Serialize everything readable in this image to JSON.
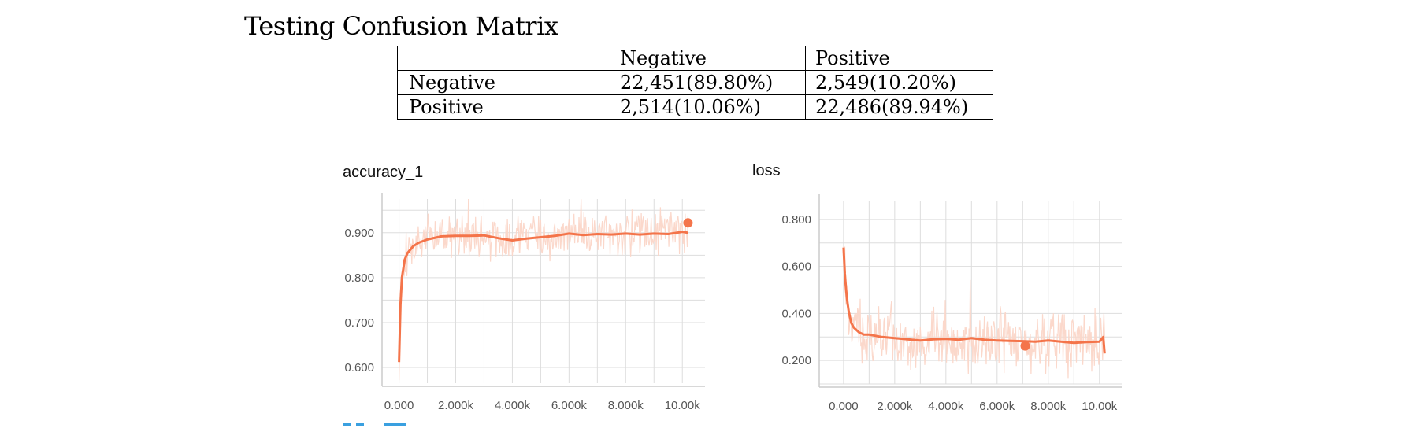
{
  "page_title": "Testing Confusion Matrix",
  "confusion_matrix": {
    "header": [
      "",
      "Negative",
      "Positive"
    ],
    "rows": [
      {
        "label": "Negative",
        "cells": [
          "22,451(89.80%)",
          "2,549(10.20%)"
        ]
      },
      {
        "label": "Positive",
        "cells": [
          "2,514(10.06%)",
          "22,486(89.94%)"
        ]
      }
    ]
  },
  "chart_data": [
    {
      "type": "line",
      "title": "accuracy_1",
      "xlabel": "",
      "ylabel": "",
      "xlim": [
        -600,
        10800
      ],
      "ylim": [
        0.565,
        0.975
      ],
      "x_ticks": [
        0,
        2000,
        4000,
        6000,
        8000,
        10000
      ],
      "x_tick_labels": [
        "0.000",
        "2.000k",
        "4.000k",
        "6.000k",
        "8.000k",
        "10.00k"
      ],
      "y_ticks": [
        0.6,
        0.7,
        0.8,
        0.9
      ],
      "y_tick_labels": [
        "0.600",
        "0.700",
        "0.800",
        "0.900"
      ],
      "grid": true,
      "colors": {
        "smoothed": "#f4744a",
        "raw": "#fbd6c8",
        "grid": "#dddddd",
        "axis": "#cccccc",
        "tick_text": "#555555"
      },
      "series": [
        {
          "smoothed": true,
          "x": [
            0,
            50,
            100,
            200,
            300,
            500,
            700,
            1000,
            1500,
            2000,
            2500,
            3000,
            3500,
            4000,
            4500,
            5000,
            5500,
            6000,
            6500,
            7000,
            7500,
            8000,
            8500,
            9000,
            9500,
            10000,
            10200
          ],
          "y": [
            0.612,
            0.74,
            0.8,
            0.84,
            0.855,
            0.87,
            0.878,
            0.885,
            0.892,
            0.893,
            0.893,
            0.894,
            0.888,
            0.883,
            0.887,
            0.89,
            0.893,
            0.898,
            0.895,
            0.897,
            0.896,
            0.898,
            0.896,
            0.898,
            0.897,
            0.902,
            0.9
          ]
        }
      ],
      "highlight_point": {
        "x": 10200,
        "y": 0.922
      }
    },
    {
      "type": "line",
      "title": "loss",
      "xlabel": "",
      "ylabel": "",
      "xlim": [
        -950,
        10900
      ],
      "ylim": [
        0.1,
        0.88
      ],
      "x_ticks": [
        0,
        2000,
        4000,
        6000,
        8000,
        10000
      ],
      "x_tick_labels": [
        "0.000",
        "2.000k",
        "4.000k",
        "6.000k",
        "8.000k",
        "10.00k"
      ],
      "y_ticks": [
        0.2,
        0.4,
        0.6,
        0.8
      ],
      "y_tick_labels": [
        "0.200",
        "0.400",
        "0.600",
        "0.800"
      ],
      "grid": true,
      "colors": {
        "smoothed": "#f4744a",
        "raw": "#fbd6c8",
        "grid": "#dddddd",
        "axis": "#cccccc",
        "tick_text": "#555555"
      },
      "series": [
        {
          "smoothed": true,
          "x": [
            0,
            50,
            100,
            150,
            200,
            300,
            400,
            600,
            800,
            1000,
            1500,
            2000,
            2500,
            3000,
            3500,
            4000,
            4500,
            5000,
            5500,
            6000,
            6500,
            7000,
            7500,
            8000,
            8500,
            9000,
            9500,
            10000,
            10150,
            10200
          ],
          "y": [
            0.68,
            0.57,
            0.5,
            0.45,
            0.41,
            0.36,
            0.34,
            0.32,
            0.31,
            0.31,
            0.3,
            0.295,
            0.29,
            0.285,
            0.29,
            0.292,
            0.288,
            0.295,
            0.288,
            0.285,
            0.283,
            0.282,
            0.28,
            0.285,
            0.28,
            0.275,
            0.278,
            0.28,
            0.3,
            0.23
          ]
        }
      ],
      "highlight_point": {
        "x": 7100,
        "y": 0.262
      }
    }
  ]
}
